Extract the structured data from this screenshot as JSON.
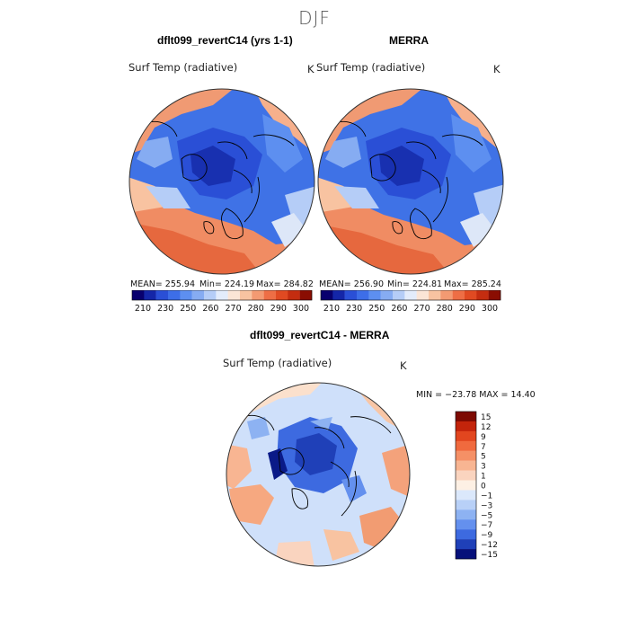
{
  "super_title": "DJF",
  "panels": [
    {
      "title": "dflt099_revertC14 (yrs 1-1)",
      "variable": "Surf Temp (radiative)",
      "units": "K",
      "stats": {
        "mean": "MEAN= 255.94",
        "min": "Min= 224.19",
        "max": "Max= 284.82"
      }
    },
    {
      "title": "MERRA",
      "variable": "Surf Temp (radiative)",
      "units": "K",
      "stats": {
        "mean": "MEAN= 256.90",
        "min": "Min= 224.81",
        "max": "Max= 285.24"
      }
    },
    {
      "title": "dflt099_revertC14 - MERRA",
      "variable": "Surf Temp (radiative)",
      "units": "K",
      "stats": {
        "minmax": "MIN = −23.78 MAX =  14.40"
      }
    }
  ],
  "abs_colorbar": {
    "labels": [
      "210",
      "230",
      "250",
      "260",
      "270",
      "280",
      "290",
      "300"
    ],
    "colors": [
      "#08006e",
      "#1426a8",
      "#2a4fd6",
      "#3d6ee8",
      "#5d8ff0",
      "#86acf2",
      "#b5cdf7",
      "#e3ecfb",
      "#fbe5d6",
      "#f8c3a1",
      "#f39a72",
      "#ee6e45",
      "#e04a22",
      "#c42d10",
      "#8a0d02"
    ]
  },
  "diff_colorbar": {
    "labels": [
      "15",
      "12",
      "9",
      "7",
      "5",
      "3",
      "1",
      "0",
      "−1",
      "−3",
      "−5",
      "−7",
      "−9",
      "−12",
      "−15"
    ],
    "colors": [
      "#7d0a02",
      "#c3240b",
      "#e2461f",
      "#f06a3e",
      "#f59066",
      "#f8b592",
      "#fad4bf",
      "#fdf0e4",
      "#dbe8fb",
      "#b8d0f7",
      "#8db2f2",
      "#6490ee",
      "#3d6ae0",
      "#1f40b8",
      "#06107a"
    ]
  }
}
